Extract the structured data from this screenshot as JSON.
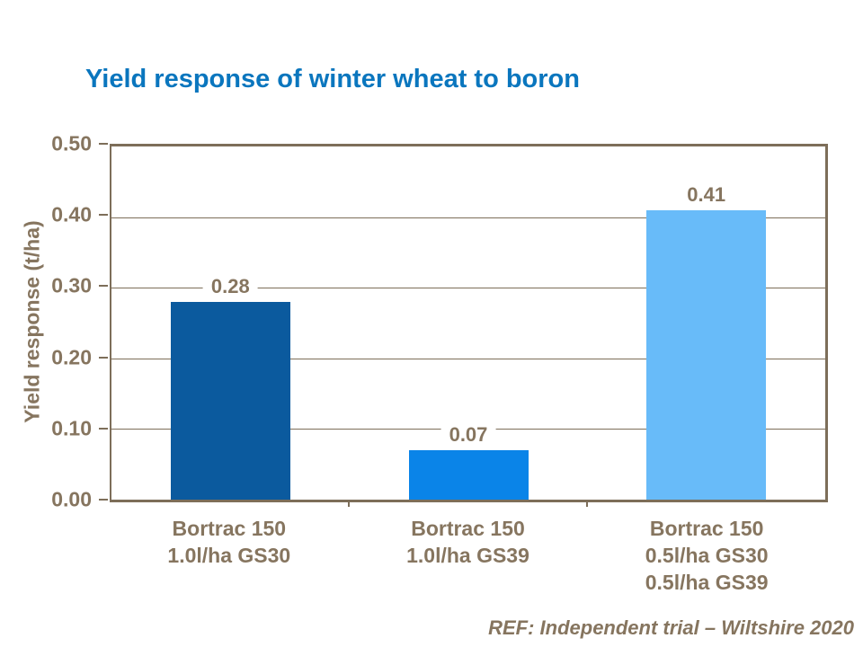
{
  "title": "Yield response of winter wheat to boron",
  "footer": {
    "ref": "REF: Independent trial – Wiltshire 2020"
  },
  "colors": {
    "title_blue": "#0a76be",
    "text_brown": "#86755f",
    "line_brown": "#7d6e59",
    "bar_colors": [
      "#0b5a9e",
      "#0a84e8",
      "#68bbf9"
    ]
  },
  "chart_data": {
    "type": "bar",
    "title": "Yield response of winter wheat to boron",
    "categories": [
      [
        "Bortrac 150",
        "1.0l/ha GS30"
      ],
      [
        "Bortrac 150",
        "1.0l/ha GS39"
      ],
      [
        "Bortrac 150",
        "0.5l/ha GS30",
        "0.5l/ha GS39"
      ]
    ],
    "values": [
      0.28,
      0.07,
      0.41
    ],
    "value_labels": [
      "0.28",
      "0.07",
      "0.41"
    ],
    "xlabel": "",
    "ylabel": "Yield response (t/ha)",
    "ylim": [
      0,
      0.5
    ],
    "ytick_step": 0.1,
    "yticks": [
      "0.00",
      "0.10",
      "0.20",
      "0.30",
      "0.40",
      "0.50"
    ],
    "grid": true,
    "legend": false,
    "bar_colors": [
      "#0b5a9e",
      "#0a84e8",
      "#68bbf9"
    ],
    "annotation": "REF: Independent trial – Wiltshire 2020"
  }
}
